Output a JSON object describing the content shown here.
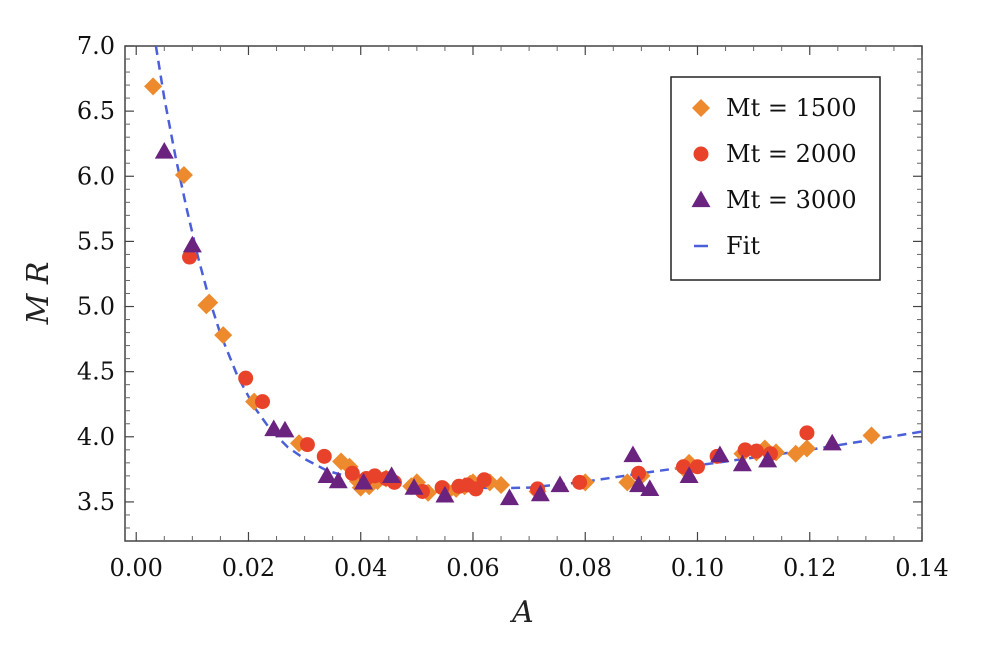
{
  "chart_data": {
    "type": "scatter",
    "title": "",
    "xlabel": "A",
    "ylabel": "M R",
    "xlim": [
      -0.002,
      0.14
    ],
    "ylim": [
      3.2,
      7.0
    ],
    "x_ticks": [
      0.0,
      0.02,
      0.04,
      0.06,
      0.08,
      0.1,
      0.12,
      0.14
    ],
    "x_tick_labels": [
      "0.00",
      "0.02",
      "0.04",
      "0.06",
      "0.08",
      "0.10",
      "0.12",
      "0.14"
    ],
    "y_ticks": [
      3.5,
      4.0,
      4.5,
      5.0,
      5.5,
      6.0,
      6.5,
      7.0
    ],
    "y_tick_labels": [
      "3.5",
      "4.0",
      "4.5",
      "5.0",
      "5.5",
      "6.0",
      "6.5",
      "7.0"
    ],
    "grid": false,
    "legend_position": "top-right",
    "series": [
      {
        "name": "Mt = 1500",
        "marker": "diamond",
        "color": "#ee8a2e",
        "points": [
          [
            0.003,
            6.69
          ],
          [
            0.0085,
            6.01
          ],
          [
            0.0125,
            5.01
          ],
          [
            0.013,
            5.03
          ],
          [
            0.0155,
            4.78
          ],
          [
            0.021,
            4.27
          ],
          [
            0.029,
            3.95
          ],
          [
            0.0365,
            3.81
          ],
          [
            0.038,
            3.77
          ],
          [
            0.0395,
            3.66
          ],
          [
            0.04,
            3.61
          ],
          [
            0.0415,
            3.62
          ],
          [
            0.043,
            3.66
          ],
          [
            0.0445,
            3.68
          ],
          [
            0.049,
            3.62
          ],
          [
            0.05,
            3.65
          ],
          [
            0.052,
            3.57
          ],
          [
            0.0555,
            3.58
          ],
          [
            0.057,
            3.6
          ],
          [
            0.0585,
            3.62
          ],
          [
            0.0595,
            3.64
          ],
          [
            0.06,
            3.65
          ],
          [
            0.063,
            3.65
          ],
          [
            0.065,
            3.63
          ],
          [
            0.0715,
            3.58
          ],
          [
            0.08,
            3.65
          ],
          [
            0.0875,
            3.65
          ],
          [
            0.09,
            3.7
          ],
          [
            0.0975,
            3.76
          ],
          [
            0.0985,
            3.8
          ],
          [
            0.108,
            3.87
          ],
          [
            0.1105,
            3.88
          ],
          [
            0.112,
            3.91
          ],
          [
            0.114,
            3.88
          ],
          [
            0.1175,
            3.87
          ],
          [
            0.1195,
            3.91
          ],
          [
            0.131,
            4.01
          ]
        ]
      },
      {
        "name": "Mt = 2000",
        "marker": "circle",
        "color": "#e8432a",
        "points": [
          [
            0.0095,
            5.38
          ],
          [
            0.0195,
            4.45
          ],
          [
            0.0225,
            4.27
          ],
          [
            0.0305,
            3.94
          ],
          [
            0.0335,
            3.85
          ],
          [
            0.0385,
            3.72
          ],
          [
            0.041,
            3.68
          ],
          [
            0.0425,
            3.7
          ],
          [
            0.0445,
            3.68
          ],
          [
            0.046,
            3.65
          ],
          [
            0.051,
            3.58
          ],
          [
            0.0545,
            3.61
          ],
          [
            0.0575,
            3.62
          ],
          [
            0.059,
            3.63
          ],
          [
            0.0605,
            3.6
          ],
          [
            0.062,
            3.67
          ],
          [
            0.0715,
            3.6
          ],
          [
            0.079,
            3.65
          ],
          [
            0.0895,
            3.72
          ],
          [
            0.0975,
            3.77
          ],
          [
            0.1,
            3.77
          ],
          [
            0.1035,
            3.85
          ],
          [
            0.1085,
            3.9
          ],
          [
            0.1105,
            3.89
          ],
          [
            0.113,
            3.87
          ],
          [
            0.1195,
            4.03
          ]
        ]
      },
      {
        "name": "Mt = 3000",
        "marker": "triangle",
        "color": "#6a2480",
        "points": [
          [
            0.005,
            6.19
          ],
          [
            0.01,
            5.47
          ],
          [
            0.0245,
            4.06
          ],
          [
            0.0265,
            4.05
          ],
          [
            0.034,
            3.7
          ],
          [
            0.036,
            3.66
          ],
          [
            0.0405,
            3.65
          ],
          [
            0.0455,
            3.7
          ],
          [
            0.0495,
            3.61
          ],
          [
            0.055,
            3.55
          ],
          [
            0.0665,
            3.53
          ],
          [
            0.072,
            3.56
          ],
          [
            0.0755,
            3.63
          ],
          [
            0.0885,
            3.86
          ],
          [
            0.0895,
            3.63
          ],
          [
            0.0915,
            3.6
          ],
          [
            0.0985,
            3.7
          ],
          [
            0.104,
            3.86
          ],
          [
            0.108,
            3.79
          ],
          [
            0.1125,
            3.82
          ],
          [
            0.124,
            3.95
          ]
        ]
      },
      {
        "name": "Fit",
        "marker": "dashed-line",
        "color": "#4a5fd8",
        "points": [
          [
            0.0035,
            7.0
          ],
          [
            0.005,
            6.6
          ],
          [
            0.007,
            6.15
          ],
          [
            0.009,
            5.75
          ],
          [
            0.011,
            5.38
          ],
          [
            0.013,
            5.06
          ],
          [
            0.015,
            4.79
          ],
          [
            0.018,
            4.47
          ],
          [
            0.021,
            4.23
          ],
          [
            0.024,
            4.05
          ],
          [
            0.027,
            3.92
          ],
          [
            0.03,
            3.83
          ],
          [
            0.034,
            3.74
          ],
          [
            0.038,
            3.69
          ],
          [
            0.042,
            3.66
          ],
          [
            0.046,
            3.64
          ],
          [
            0.05,
            3.625
          ],
          [
            0.055,
            3.615
          ],
          [
            0.06,
            3.61
          ],
          [
            0.065,
            3.605
          ],
          [
            0.07,
            3.61
          ],
          [
            0.08,
            3.655
          ],
          [
            0.09,
            3.72
          ],
          [
            0.1,
            3.78
          ],
          [
            0.11,
            3.84
          ],
          [
            0.12,
            3.9
          ],
          [
            0.13,
            3.97
          ],
          [
            0.14,
            4.04
          ]
        ]
      }
    ]
  }
}
